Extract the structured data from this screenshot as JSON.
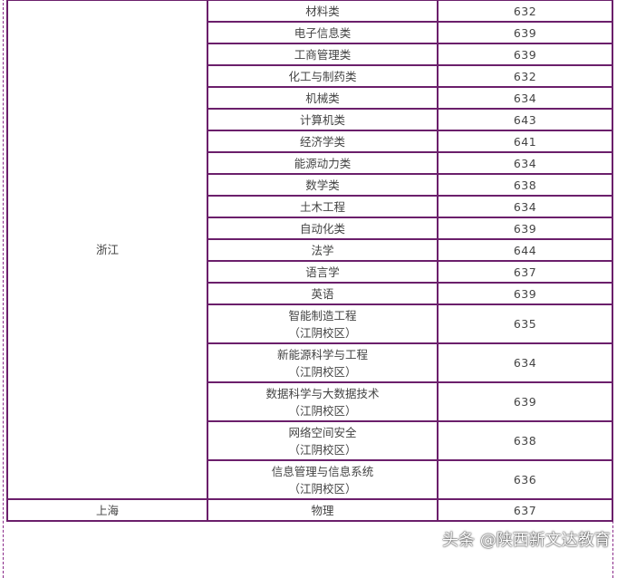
{
  "province_zhejiang": "浙江",
  "rows": [
    {
      "major": "材料类",
      "score": "632"
    },
    {
      "major": "电子信息类",
      "score": "639"
    },
    {
      "major": "工商管理类",
      "score": "639"
    },
    {
      "major": "化工与制药类",
      "score": "632"
    },
    {
      "major": "机械类",
      "score": "634"
    },
    {
      "major": "计算机类",
      "score": "643"
    },
    {
      "major": "经济学类",
      "score": "641"
    },
    {
      "major": "能源动力类",
      "score": "634"
    },
    {
      "major": "数学类",
      "score": "638"
    },
    {
      "major": "土木工程",
      "score": "634"
    },
    {
      "major": "自动化类",
      "score": "639"
    },
    {
      "major": "法学",
      "score": "644"
    },
    {
      "major": "语言学",
      "score": "637"
    },
    {
      "major": "英语",
      "score": "639"
    },
    {
      "major": "智能制造工程",
      "campus": "（江阴校区）",
      "score": "635"
    },
    {
      "major": "新能源科学与工程",
      "campus": "（江阴校区）",
      "score": "634"
    },
    {
      "major": "数据科学与大数据技术",
      "campus": "（江阴校区）",
      "score": "639"
    },
    {
      "major": "网络空间安全",
      "campus": "（江阴校区）",
      "score": "638"
    },
    {
      "major": "信息管理与信息系统",
      "campus": "（江阴校区）",
      "score": "636"
    }
  ],
  "shanghai": {
    "province": "上海",
    "major": "物理",
    "score": "637"
  },
  "watermark": "头条 @陕西新文达教育"
}
